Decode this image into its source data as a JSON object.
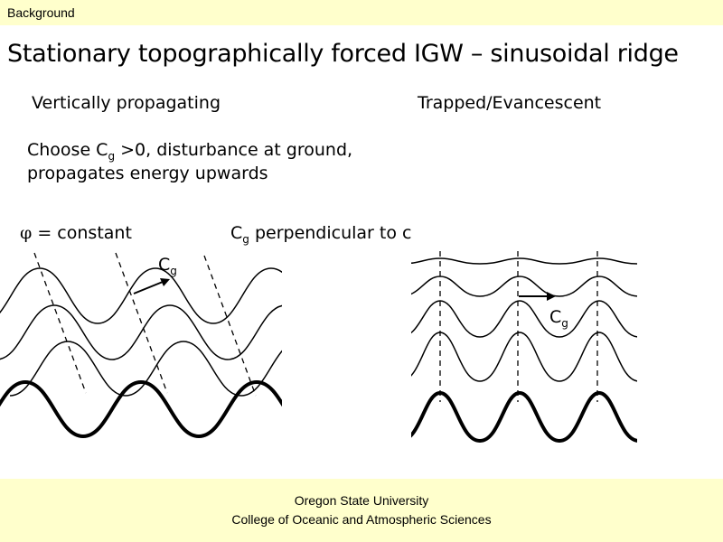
{
  "header": {
    "label": "Background"
  },
  "title": "Stationary topographically forced IGW – sinusoidal ridge",
  "left_heading": "Vertically propagating",
  "right_heading": "Trapped/Evancescent",
  "description": {
    "line1_pre": "Choose C",
    "line1_sub": "g",
    "line1_post": " >0, disturbance at ground,",
    "line2": "propagates energy upwards"
  },
  "phi_label": {
    "symbol": "φ",
    "text": " = constant"
  },
  "cg_perp_label": {
    "main": "C",
    "sub": "g",
    "rest": " perpendicular to c"
  },
  "left_cg_label": {
    "main": "C",
    "sub": "g"
  },
  "right_cg_label": {
    "main": "C",
    "sub": "g"
  },
  "footer": {
    "line1": "Oregon State University",
    "line2": "College of Oceanic and Atmospheric Sciences"
  },
  "colors": {
    "band": "#ffffcc",
    "ink": "#000000"
  }
}
